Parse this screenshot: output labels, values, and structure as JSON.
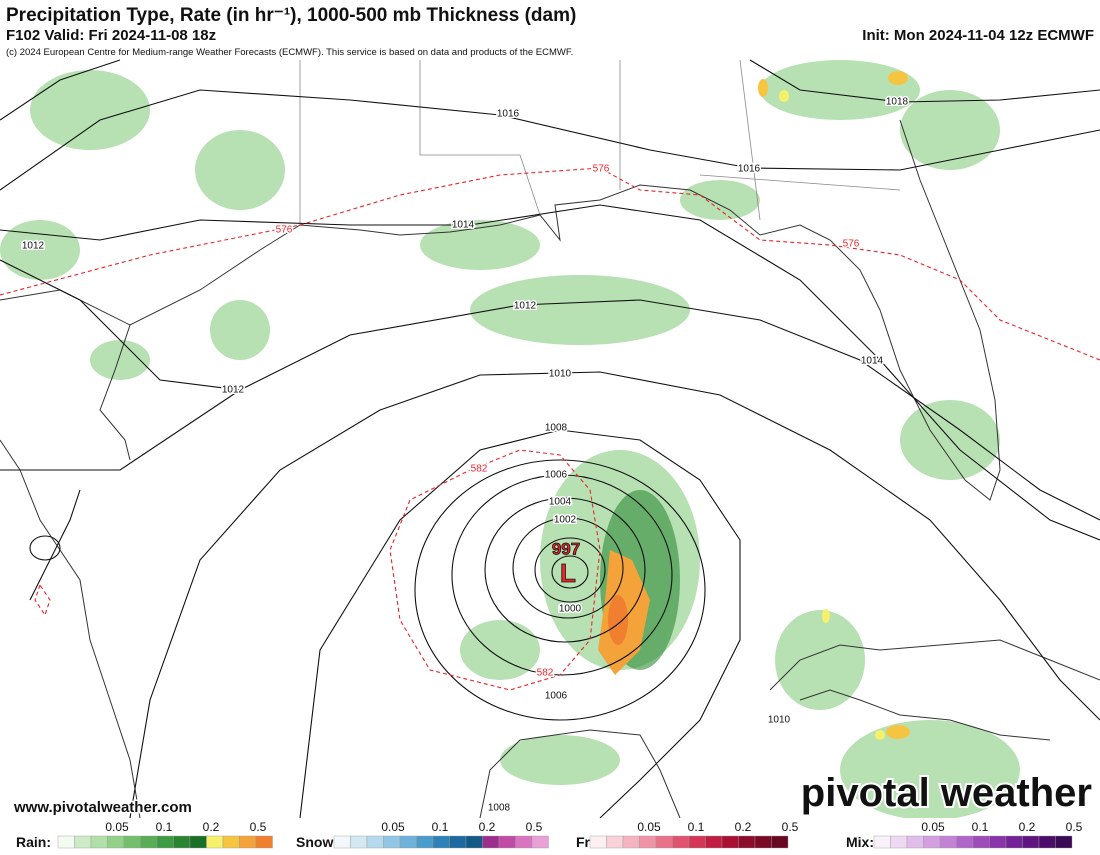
{
  "header": {
    "title": "Precipitation Type, Rate (in hr⁻¹), 1000-500 mb Thickness (dam)",
    "valid": "F102 Valid: Fri 2024-11-08 18z",
    "init": "Init: Mon 2024-11-04 12z ECMWF",
    "copyright": "(c) 2024 European Centre for Medium-range Weather Forecasts (ECMWF). This service is based on data and products of the ECMWF."
  },
  "map": {
    "isobar_labels": [
      "1016",
      "1018",
      "1016",
      "1014",
      "1012",
      "1012",
      "1012",
      "1014",
      "1010",
      "1008",
      "1006",
      "1004",
      "1002",
      "1000",
      "1006",
      "1010",
      "1008"
    ],
    "thickness_labels": [
      "576",
      "576",
      "576",
      "582",
      "582"
    ],
    "low": {
      "pressure": "997",
      "symbol": "L"
    }
  },
  "footer": {
    "url": "www.pivotalweather.com",
    "logo": "pivotal weather"
  },
  "legend": [
    {
      "label": "Rain:",
      "ticks": [
        0.05,
        0.1,
        0.2,
        0.5
      ],
      "colors": [
        "#f4fbf2",
        "#cdebc6",
        "#b1dfa8",
        "#93d08a",
        "#74bf6e",
        "#58ad56",
        "#3e9a43",
        "#2a8533",
        "#1a6f27",
        "#f7f06a",
        "#f5c542",
        "#f3a33a",
        "#f08030"
      ]
    },
    {
      "label": "Snow:",
      "ticks": [
        0.05,
        0.1,
        0.2,
        0.5
      ],
      "colors": [
        "#f2f8fc",
        "#d4e8f4",
        "#b6d9ee",
        "#93c6e4",
        "#6fb1d8",
        "#4b9bcb",
        "#2f82b8",
        "#1c6aa0",
        "#135a87",
        "#9c2e8c",
        "#c04aa7",
        "#d874c0",
        "#e8a1d6"
      ]
    },
    {
      "label": "Frzr:",
      "ticks": [
        0.05,
        0.1,
        0.2,
        0.5
      ],
      "colors": [
        "#fdf0f2",
        "#f9d2d9",
        "#f4b3c0",
        "#ef93a6",
        "#e9728b",
        "#e05270",
        "#d43558",
        "#c11d42",
        "#a90f33",
        "#8c0a2a",
        "#7a0a26",
        "#650a22"
      ]
    },
    {
      "label": "Mix:",
      "ticks": [
        0.05,
        0.1,
        0.2,
        0.5
      ],
      "colors": [
        "#faf2fb",
        "#eed8f2",
        "#e1bdea",
        "#d2a0e0",
        "#c283d5",
        "#b066c8",
        "#9d4cba",
        "#8935a9",
        "#742396",
        "#5f1580",
        "#4b0d6a",
        "#3a0a55"
      ]
    }
  ]
}
